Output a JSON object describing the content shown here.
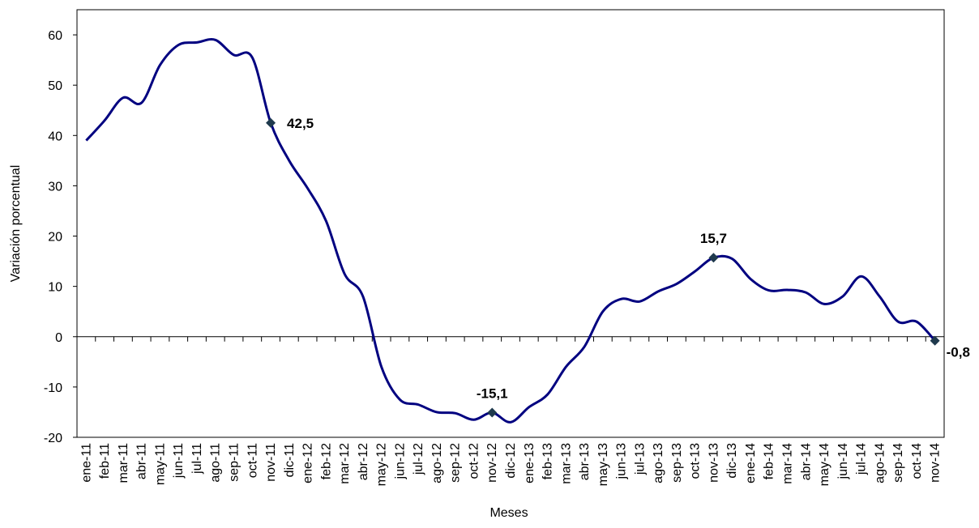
{
  "chart_data": {
    "type": "line",
    "x_label": "Meses",
    "y_label": "Variación porcentual",
    "categories": [
      "ene-11",
      "feb-11",
      "mar-11",
      "abr-11",
      "may-11",
      "jun-11",
      "jul-11",
      "ago-11",
      "sep-11",
      "oct-11",
      "nov-11",
      "dic-11",
      "ene-12",
      "feb-12",
      "mar-12",
      "abr-12",
      "may-12",
      "jun-12",
      "jul-12",
      "ago-12",
      "sep-12",
      "oct-12",
      "nov-12",
      "dic-12",
      "ene-13",
      "feb-13",
      "mar-13",
      "abr-13",
      "may-13",
      "jun-13",
      "jul-13",
      "ago-13",
      "sep-13",
      "oct-13",
      "nov-13",
      "dic-13",
      "ene-14",
      "feb-14",
      "mar-14",
      "abr-14",
      "may-14",
      "jun-14",
      "jul-14",
      "ago-14",
      "sep-14",
      "oct-14",
      "nov-14"
    ],
    "values": [
      39,
      43,
      47.5,
      46.5,
      54,
      58,
      58.5,
      59,
      56,
      55.5,
      42.5,
      35,
      29.5,
      23,
      12.5,
      8,
      -6,
      -12.5,
      -13.5,
      -15,
      -15.2,
      -16.5,
      -15.1,
      -17,
      -14,
      -11.5,
      -6,
      -2,
      5,
      7.5,
      7,
      9,
      10.5,
      13,
      15.7,
      15.5,
      11.5,
      9.2,
      9.3,
      8.8,
      6.5,
      8,
      12,
      8,
      3,
      3,
      -0.8
    ],
    "value_labels": [
      null,
      null,
      null,
      null,
      null,
      null,
      null,
      null,
      null,
      null,
      "42,5",
      null,
      null,
      null,
      null,
      null,
      null,
      null,
      null,
      null,
      null,
      null,
      "-15,1",
      null,
      null,
      null,
      null,
      null,
      null,
      null,
      null,
      null,
      null,
      null,
      "15,7",
      null,
      null,
      null,
      null,
      null,
      null,
      null,
      null,
      null,
      null,
      null,
      "-0,8"
    ],
    "color": "#000080",
    "ylim": [
      -20,
      65
    ],
    "yticks": [
      -20,
      -10,
      0,
      10,
      20,
      30,
      40,
      50,
      60
    ]
  }
}
